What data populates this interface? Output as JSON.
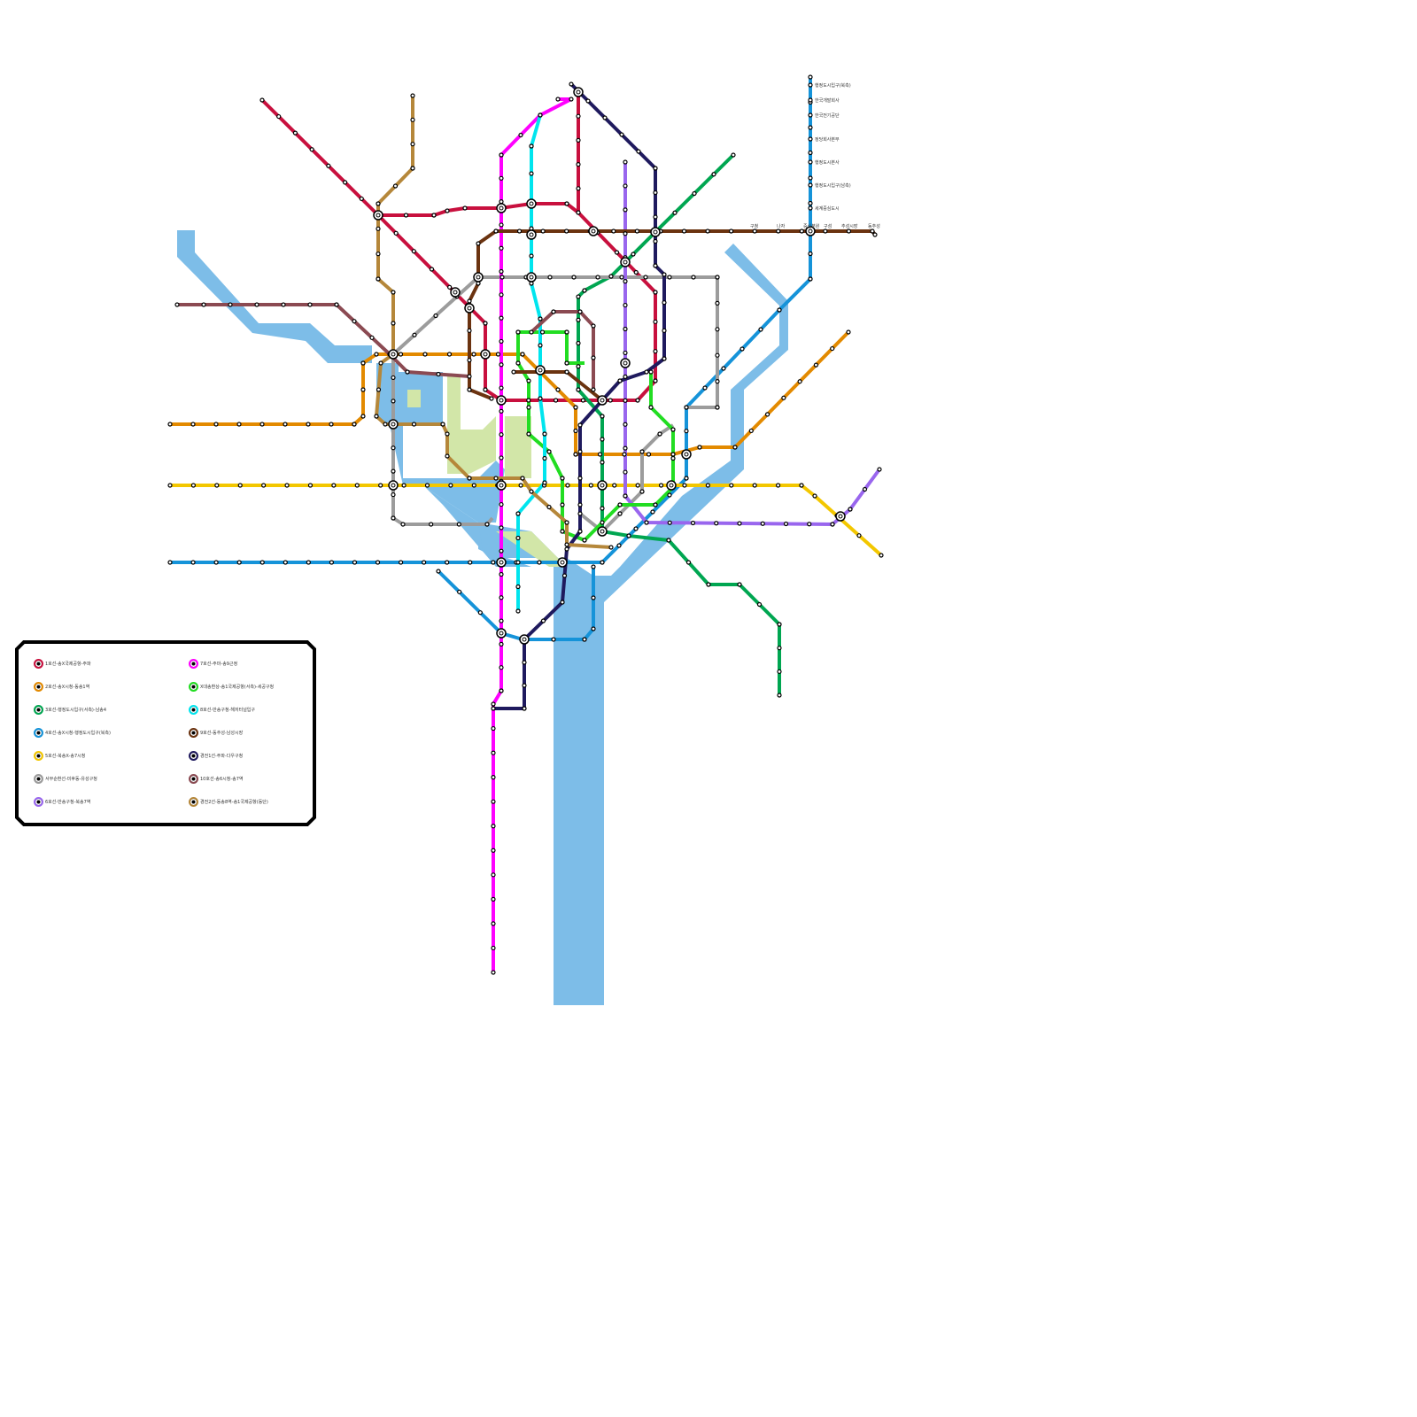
{
  "legend": {
    "items": [
      {
        "label": "1호선-송X국제공항-주파",
        "color": "#c8103e"
      },
      {
        "label": "2호선-송X시청-동송1역",
        "color": "#e38a00"
      },
      {
        "label": "3호선-행정도시입구(서측)-남송4",
        "color": "#00a651"
      },
      {
        "label": "4호선-송X시청-행정도시입구(북측)",
        "color": "#1593d9"
      },
      {
        "label": "5호선-북송X-송7시청",
        "color": "#f3c700"
      },
      {
        "label": "서부순환선-미후동-유성구청",
        "color": "#9c9c9c"
      },
      {
        "label": "6호선-반송구청-북송7역",
        "color": "#9966ee"
      },
      {
        "label": "7호선-주마-송9근정",
        "color": "#ff00ff"
      },
      {
        "label": "X대송환상-송1국제공항(서측)-세공구청",
        "color": "#22dd22"
      },
      {
        "label": "8호선-반송구청-해저터널입구",
        "color": "#00e5ee"
      },
      {
        "label": "9호선-동추성-남성시장",
        "color": "#6b3310"
      },
      {
        "label": "경전1선-주파-다우구청",
        "color": "#1f1a5e"
      },
      {
        "label": "10호선-송6시청-송7역",
        "color": "#8b4a52"
      },
      {
        "label": "경전2선-동송8역-송1국제공항(동단)",
        "color": "#b5873a"
      }
    ]
  },
  "stations": {
    "line4_north": [
      "행정도시입구(북측)",
      "한국개발회사",
      "한국전기공단",
      "정당회사본부",
      "행정도시본사",
      "행정도시입구(남측)",
      "세계중심도시"
    ],
    "line9_east": [
      "구청",
      "나자",
      "중심분원",
      "구섬",
      "추성시장",
      "동추성"
    ]
  },
  "colors": {
    "water": "#7dbde8",
    "park": "#d2e6a8",
    "background": "#ffffff"
  }
}
